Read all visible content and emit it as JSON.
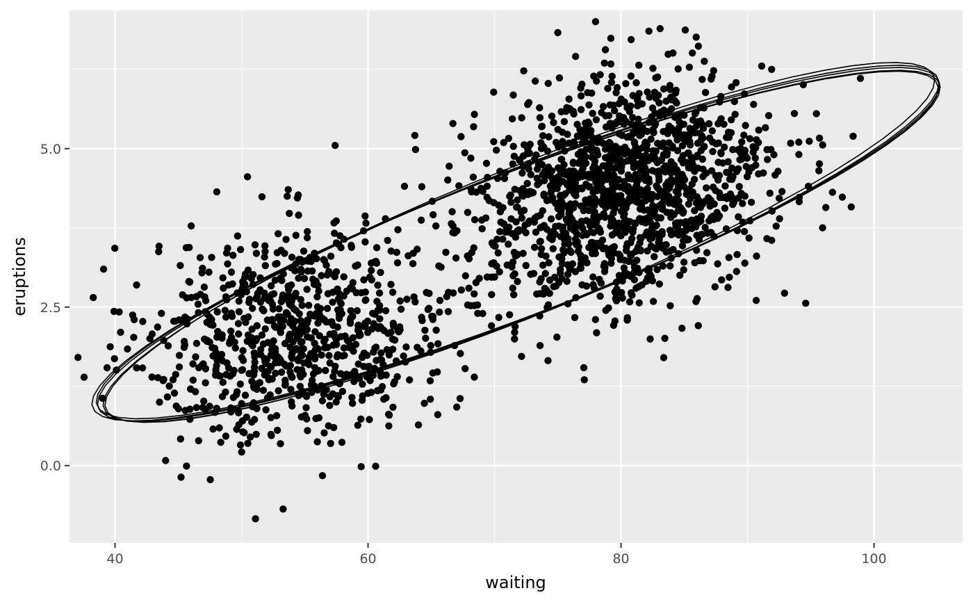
{
  "chart_data": {
    "type": "scatter",
    "title": "",
    "xlabel": "waiting",
    "ylabel": "eruptions",
    "xlim": [
      36.4,
      107.0
    ],
    "ylim": [
      -1.22,
      7.18
    ],
    "x_ticks": [
      40,
      60,
      80,
      100
    ],
    "x_tick_labels": [
      "40",
      "60",
      "80",
      "100"
    ],
    "y_ticks": [
      0,
      2.5,
      5
    ],
    "y_tick_labels": [
      "0.0",
      "2.5",
      "5.0"
    ],
    "grid": true,
    "legend": "none",
    "point_count": 2272,
    "point_color": "#000000",
    "ellipse_count": 5,
    "ellipse_color": "#000000",
    "panel_color": "#ebebeb",
    "gridline_color": "#ffffff",
    "clusters": [
      {
        "center": [
          54.5,
          2.1
        ],
        "sd": [
          6.0,
          0.85
        ],
        "corr": 0.15,
        "share": 0.36
      },
      {
        "center": [
          80.0,
          4.3
        ],
        "sd": [
          6.0,
          0.9
        ],
        "corr": 0.2,
        "share": 0.64
      }
    ],
    "ellipses": [
      {
        "center": [
          71.9,
          3.49
        ],
        "sd": [
          13.6,
          1.14
        ],
        "corr": 0.9,
        "level": 0.95
      },
      {
        "center": [
          72.1,
          3.5
        ],
        "sd": [
          13.5,
          1.15
        ],
        "corr": 0.9,
        "level": 0.95
      },
      {
        "center": [
          71.7,
          3.47
        ],
        "sd": [
          13.7,
          1.13
        ],
        "corr": 0.9,
        "level": 0.95
      },
      {
        "center": [
          72.0,
          3.52
        ],
        "sd": [
          13.4,
          1.16
        ],
        "corr": 0.9,
        "level": 0.95
      },
      {
        "center": [
          71.8,
          3.48
        ],
        "sd": [
          13.6,
          1.12
        ],
        "corr": 0.9,
        "level": 0.95
      }
    ],
    "highlight_points": [
      [
        75.0,
        6.83
      ],
      [
        80.8,
        6.72
      ],
      [
        57.4,
        5.05
      ],
      [
        51.1,
        -0.84
      ],
      [
        56.4,
        -0.16
      ],
      [
        60.6,
        -0.01
      ],
      [
        98.2,
        4.08
      ],
      [
        94.6,
        2.56
      ],
      [
        41.7,
        2.85
      ],
      [
        44.0,
        0.08
      ]
    ]
  }
}
